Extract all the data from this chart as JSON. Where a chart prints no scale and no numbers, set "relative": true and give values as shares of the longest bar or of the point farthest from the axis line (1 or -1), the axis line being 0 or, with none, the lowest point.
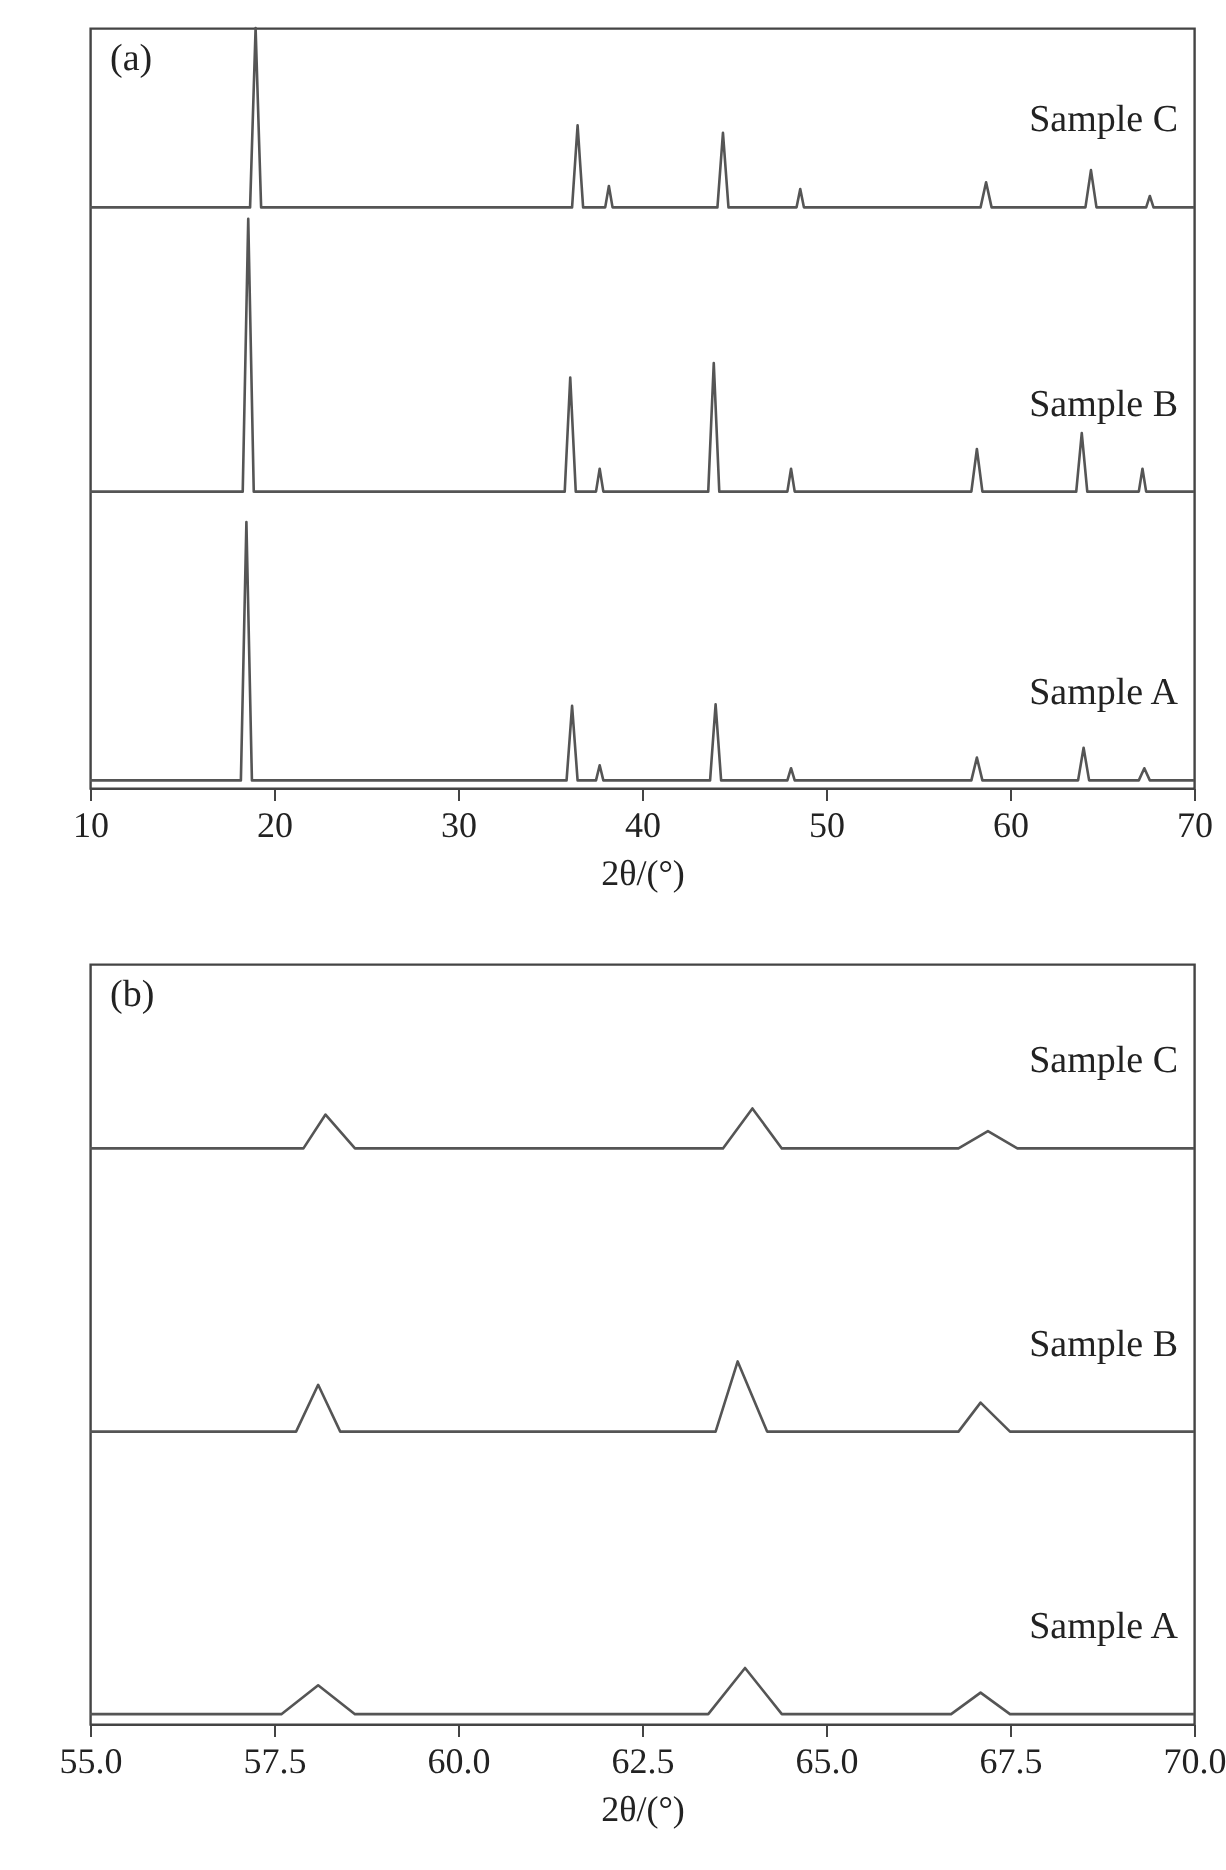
{
  "chart_data": [
    {
      "type": "line",
      "relative": true,
      "annotations": [
        "(a)"
      ],
      "xlabel": "2θ/(°)",
      "xlim": [
        10,
        70
      ],
      "xticks": [
        10,
        20,
        30,
        40,
        50,
        60,
        70
      ],
      "tick_labels": "x",
      "series": [
        {
          "name": "Sample A",
          "color": "#555555",
          "x": [
            10,
            18.2,
            18.5,
            18.8,
            35.9,
            36.2,
            36.5,
            37.5,
            37.7,
            37.9,
            43.7,
            44.0,
            44.3,
            47.9,
            48.1,
            48.3,
            57.9,
            58.2,
            58.5,
            63.7,
            64.0,
            64.3,
            67.0,
            67.3,
            67.6,
            70
          ],
          "values": [
            0.01,
            0.01,
            0.35,
            0.01,
            0.01,
            0.108,
            0.01,
            0.01,
            0.03,
            0.01,
            0.01,
            0.11,
            0.01,
            0.01,
            0.026,
            0.01,
            0.01,
            0.04,
            0.01,
            0.01,
            0.053,
            0.01,
            0.01,
            0.026,
            0.01,
            0.01
          ]
        },
        {
          "name": "Sample B",
          "color": "#555555",
          "x": [
            10,
            18.3,
            18.6,
            18.9,
            35.8,
            36.1,
            36.4,
            37.5,
            37.7,
            37.9,
            43.6,
            43.9,
            44.2,
            47.9,
            48.1,
            48.3,
            57.9,
            58.2,
            58.5,
            63.6,
            63.9,
            64.2,
            67.0,
            67.2,
            67.4,
            70
          ],
          "values": [
            0.39,
            0.39,
            0.749,
            0.39,
            0.39,
            0.54,
            0.39,
            0.39,
            0.42,
            0.39,
            0.39,
            0.559,
            0.39,
            0.39,
            0.42,
            0.39,
            0.39,
            0.446,
            0.39,
            0.39,
            0.467,
            0.39,
            0.39,
            0.42,
            0.39,
            0.39
          ]
        },
        {
          "name": "Sample C",
          "color": "#555555",
          "x": [
            10,
            18.7,
            19.0,
            19.3,
            36.2,
            36.5,
            36.8,
            38.0,
            38.2,
            38.4,
            44.1,
            44.4,
            44.7,
            48.4,
            48.6,
            48.8,
            58.4,
            58.7,
            59.0,
            64.1,
            64.4,
            64.7,
            67.4,
            67.6,
            67.8,
            70
          ],
          "values": [
            0.764,
            0.764,
            1.0,
            0.764,
            0.764,
            0.872,
            0.764,
            0.764,
            0.792,
            0.764,
            0.764,
            0.862,
            0.764,
            0.764,
            0.788,
            0.764,
            0.764,
            0.797,
            0.764,
            0.764,
            0.813,
            0.764,
            0.764,
            0.779,
            0.764,
            0.764
          ]
        }
      ]
    },
    {
      "type": "line",
      "relative": true,
      "annotations": [
        "(b)"
      ],
      "xlabel": "2θ/(°)",
      "xlim": [
        55,
        70
      ],
      "xticks": [
        {
          "value": 55,
          "label": "55.0"
        },
        {
          "value": 57.5,
          "label": "57.5"
        },
        {
          "value": 60,
          "label": "60.0"
        },
        {
          "value": 62.5,
          "label": "62.5"
        },
        {
          "value": 65,
          "label": "65.0"
        },
        {
          "value": 67.5,
          "label": "67.5"
        },
        {
          "value": 70,
          "label": "70.0"
        }
      ],
      "tick_labels": "x",
      "series": [
        {
          "name": "Sample A",
          "color": "#555555",
          "x": [
            55,
            57.6,
            58.1,
            58.6,
            63.4,
            63.9,
            64.4,
            66.7,
            67.1,
            67.5,
            70
          ],
          "values": [
            0.016,
            0.016,
            0.063,
            0.016,
            0.016,
            0.091,
            0.016,
            0.016,
            0.051,
            0.016,
            0.016
          ]
        },
        {
          "name": "Sample B",
          "color": "#555555",
          "x": [
            55,
            57.8,
            58.1,
            58.4,
            63.5,
            63.8,
            64.2,
            66.8,
            67.1,
            67.5,
            70
          ],
          "values": [
            0.475,
            0.475,
            0.551,
            0.475,
            0.475,
            0.589,
            0.475,
            0.475,
            0.522,
            0.475,
            0.475
          ]
        },
        {
          "name": "Sample C",
          "color": "#555555",
          "x": [
            55,
            57.9,
            58.2,
            58.6,
            63.6,
            64.0,
            64.4,
            66.8,
            67.2,
            67.6,
            70
          ],
          "values": [
            0.935,
            0.935,
            0.99,
            0.935,
            0.935,
            1.0,
            0.935,
            0.935,
            0.963,
            0.935,
            0.935
          ]
        }
      ]
    }
  ]
}
